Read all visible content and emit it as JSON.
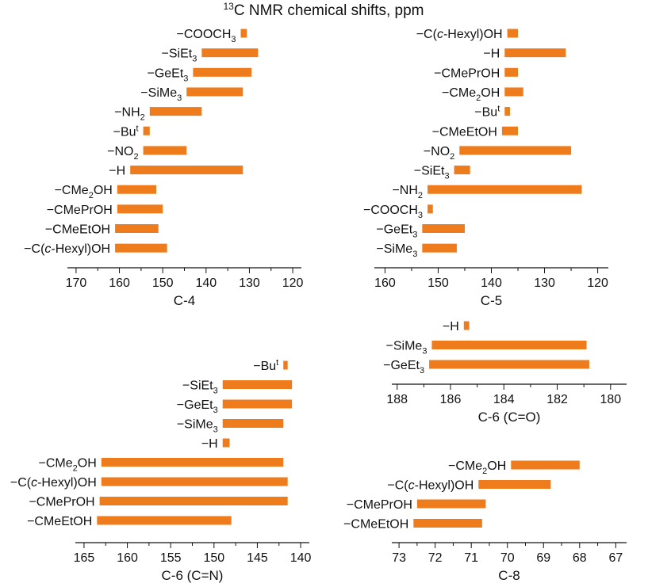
{
  "title": "13C NMR chemical shifts, ppm",
  "title_parts": {
    "sup": "13",
    "rest": "C NMR chemical shifts, ppm"
  },
  "bar_color": "#EE7B1C",
  "chart_data": [
    {
      "type": "bar",
      "orientation": "horizontal-range",
      "xlabel": "C-4",
      "xlim": [
        172,
        118
      ],
      "xticks": [
        170,
        160,
        150,
        140,
        130,
        120
      ],
      "categories": [
        "−COOCH3",
        "−SiEt3",
        "−GeEt3",
        "−SiMe3",
        "−NH2",
        "−But",
        "−NO2",
        "−H",
        "−CMe2OH",
        "−CMePrOH",
        "−CMeEtOH",
        "−C(c-Hexyl)OH"
      ],
      "ranges": [
        [
          132.0,
          130.6
        ],
        [
          141.0,
          128.0
        ],
        [
          143.0,
          129.5
        ],
        [
          144.5,
          131.5
        ],
        [
          153.0,
          141.0
        ],
        [
          154.5,
          153.0
        ],
        [
          154.5,
          144.5
        ],
        [
          157.5,
          131.5
        ],
        [
          160.5,
          151.5
        ],
        [
          160.5,
          150.0
        ],
        [
          161.0,
          151.0
        ],
        [
          161.0,
          149.0
        ]
      ]
    },
    {
      "type": "bar",
      "orientation": "horizontal-range",
      "xlabel": "C-5",
      "xlim": [
        162,
        118
      ],
      "xticks": [
        160,
        150,
        140,
        130,
        120
      ],
      "categories": [
        "−C(c-Hexyl)OH",
        "−H",
        "−CMePrOH",
        "−CMe2OH",
        "−But",
        "−CMeEtOH",
        "−NO2",
        "−SiEt3",
        "−NH2",
        "−COOCH3",
        "−GeEt3",
        "−SiMe3"
      ],
      "ranges": [
        [
          137.0,
          135.0
        ],
        [
          137.5,
          126.0
        ],
        [
          137.5,
          135.0
        ],
        [
          137.5,
          134.0
        ],
        [
          137.5,
          136.5
        ],
        [
          138.0,
          135.0
        ],
        [
          146.0,
          125.0
        ],
        [
          147.0,
          144.0
        ],
        [
          152.0,
          123.0
        ],
        [
          152.0,
          151.0
        ],
        [
          153.0,
          145.0
        ],
        [
          153.0,
          146.5
        ]
      ]
    },
    {
      "type": "bar",
      "orientation": "horizontal-range",
      "xlabel": "C-6 (C=O)",
      "xlim": [
        188.2,
        179.4
      ],
      "xticks": [
        188,
        186,
        184,
        182,
        180
      ],
      "categories": [
        "−H",
        "−SiMe3",
        "−GeEt3"
      ],
      "ranges": [
        [
          185.5,
          185.3
        ],
        [
          186.7,
          180.9
        ],
        [
          186.8,
          180.8
        ]
      ]
    },
    {
      "type": "bar",
      "orientation": "horizontal-range",
      "xlabel": "C-6 (C=N)",
      "xlim": [
        166,
        139
      ],
      "xticks": [
        165,
        160,
        155,
        150,
        145,
        140
      ],
      "categories": [
        "−But",
        "−SiEt3",
        "−GeEt3",
        "−SiMe3",
        "−H",
        "−CMe2OH",
        "−C(c-Hexyl)OH",
        "−CMePrOH",
        "−CMeEtOH"
      ],
      "ranges": [
        [
          142.0,
          141.5
        ],
        [
          149.0,
          141.0
        ],
        [
          149.0,
          141.0
        ],
        [
          149.0,
          142.0
        ],
        [
          149.0,
          148.2
        ],
        [
          163.0,
          142.0
        ],
        [
          163.0,
          141.5
        ],
        [
          163.2,
          141.5
        ],
        [
          163.5,
          148.0
        ]
      ]
    },
    {
      "type": "bar",
      "orientation": "horizontal-range",
      "xlabel": "C-8",
      "xlim": [
        73.2,
        66.7
      ],
      "xticks": [
        73,
        72,
        71,
        70,
        69,
        68,
        67
      ],
      "categories": [
        "−CMe2OH",
        "−C(c-Hexyl)OH",
        "−CMePrOH",
        "−CMeEtOH"
      ],
      "ranges": [
        [
          69.9,
          68.0
        ],
        [
          70.8,
          68.8
        ],
        [
          72.5,
          70.6
        ],
        [
          72.6,
          70.7
        ]
      ]
    }
  ]
}
